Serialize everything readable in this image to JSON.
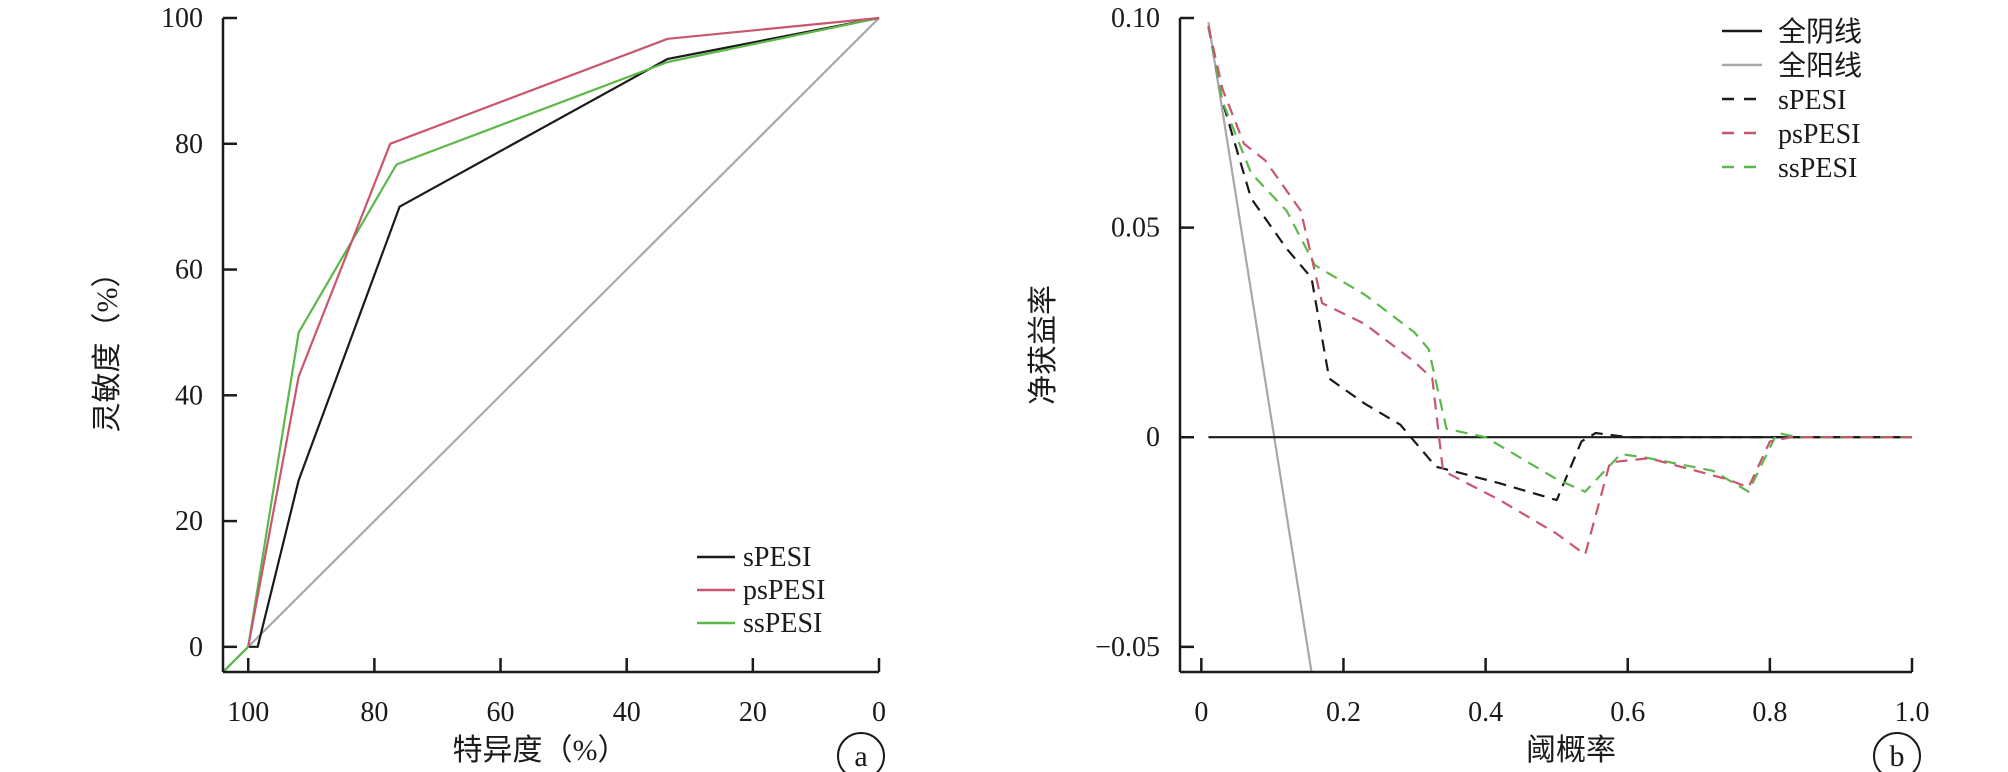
{
  "chart_data": [
    {
      "type": "line",
      "panel_label": "a",
      "xlabel": "特异度（%）",
      "ylabel": "灵敏度（%）",
      "xlim": [
        104,
        0
      ],
      "ylim": [
        -4,
        100
      ],
      "x_ticks": [
        100,
        80,
        60,
        40,
        20,
        0
      ],
      "y_ticks": [
        0,
        20,
        40,
        60,
        80,
        100
      ],
      "legend_position": "bottom-right",
      "series": [
        {
          "name": "sPESI",
          "color": "#1a1a1a",
          "dash": "solid",
          "in_legend": true,
          "points": [
            [
              100,
              0
            ],
            [
              98.5,
              0
            ],
            [
              92,
              26.5
            ],
            [
              76,
              70
            ],
            [
              33.5,
              93.5
            ],
            [
              0,
              100
            ]
          ]
        },
        {
          "name": "psPESI",
          "color": "#c8566e",
          "dash": "solid",
          "in_legend": true,
          "points": [
            [
              100,
              0
            ],
            [
              92,
              43
            ],
            [
              77.5,
              80
            ],
            [
              33.5,
              96.7
            ],
            [
              0,
              100
            ]
          ]
        },
        {
          "name": "ssPESI",
          "color": "#5cb84a",
          "dash": "solid",
          "in_legend": true,
          "points": [
            [
              104,
              -4
            ],
            [
              100,
              0
            ],
            [
              92,
              50
            ],
            [
              76.5,
              76.7
            ],
            [
              33.5,
              93
            ],
            [
              0,
              100
            ]
          ]
        },
        {
          "name": "",
          "color": "#a8a8a8",
          "dash": "solid",
          "in_legend": false,
          "points": [
            [
              104,
              -4
            ],
            [
              0,
              100
            ]
          ]
        }
      ]
    },
    {
      "type": "line",
      "panel_label": "b",
      "xlabel": "阈概率",
      "ylabel": "净获益率",
      "xlim": [
        -0.03,
        1.0
      ],
      "ylim": [
        -0.056,
        0.1
      ],
      "x_ticks": [
        0,
        0.2,
        0.4,
        0.6,
        0.8,
        1.0
      ],
      "x_tick_labels": [
        "0",
        "0.2",
        "0.4",
        "0.6",
        "0.8",
        "1.0"
      ],
      "y_ticks": [
        0.1,
        0.05,
        0,
        -0.05
      ],
      "y_tick_labels": [
        "0.10",
        "0.05",
        "0",
        "−0.05"
      ],
      "legend_position": "top-right",
      "series": [
        {
          "name": "全阴线",
          "color": "#1a1a1a",
          "dash": "solid",
          "points": [
            [
              0.01,
              0
            ],
            [
              1.0,
              0
            ]
          ]
        },
        {
          "name": "全阳线",
          "color": "#a8a8a8",
          "dash": "solid",
          "points": [
            [
              0.01,
              0.099
            ],
            [
              0.155,
              -0.056
            ]
          ]
        },
        {
          "name": "sPESI",
          "color": "#1a1a1a",
          "dash": "dashed",
          "points": [
            [
              0.01,
              0.098
            ],
            [
              0.03,
              0.08
            ],
            [
              0.07,
              0.057
            ],
            [
              0.12,
              0.045
            ],
            [
              0.155,
              0.038
            ],
            [
              0.18,
              0.014
            ],
            [
              0.23,
              0.008
            ],
            [
              0.28,
              0.003
            ],
            [
              0.33,
              -0.007
            ],
            [
              0.42,
              -0.011
            ],
            [
              0.5,
              -0.015
            ],
            [
              0.535,
              -0.001
            ],
            [
              0.555,
              0.001
            ],
            [
              0.6,
              0
            ],
            [
              1.0,
              0
            ]
          ]
        },
        {
          "name": "psPESI",
          "color": "#c8566e",
          "dash": "dashed",
          "points": [
            [
              0.01,
              0.098
            ],
            [
              0.03,
              0.083
            ],
            [
              0.06,
              0.07
            ],
            [
              0.09,
              0.066
            ],
            [
              0.14,
              0.054
            ],
            [
              0.17,
              0.032
            ],
            [
              0.23,
              0.027
            ],
            [
              0.3,
              0.018
            ],
            [
              0.325,
              0.014
            ],
            [
              0.34,
              -0.008
            ],
            [
              0.42,
              -0.015
            ],
            [
              0.5,
              -0.023
            ],
            [
              0.54,
              -0.028
            ],
            [
              0.575,
              -0.006
            ],
            [
              0.63,
              -0.005
            ],
            [
              0.74,
              -0.01
            ],
            [
              0.77,
              -0.012
            ],
            [
              0.8,
              -0.001
            ],
            [
              0.83,
              0
            ],
            [
              1.0,
              0
            ]
          ]
        },
        {
          "name": "ssPESI",
          "color": "#5cb84a",
          "dash": "dashed",
          "points": [
            [
              0.01,
              0.098
            ],
            [
              0.03,
              0.08
            ],
            [
              0.07,
              0.063
            ],
            [
              0.12,
              0.054
            ],
            [
              0.16,
              0.041
            ],
            [
              0.23,
              0.034
            ],
            [
              0.3,
              0.025
            ],
            [
              0.32,
              0.021
            ],
            [
              0.345,
              0.002
            ],
            [
              0.4,
              0
            ],
            [
              0.46,
              -0.006
            ],
            [
              0.5,
              -0.01
            ],
            [
              0.54,
              -0.013
            ],
            [
              0.59,
              -0.004
            ],
            [
              0.63,
              -0.005
            ],
            [
              0.72,
              -0.008
            ],
            [
              0.77,
              -0.013
            ],
            [
              0.81,
              0.001
            ],
            [
              0.84,
              0
            ],
            [
              1.0,
              0
            ]
          ]
        }
      ]
    }
  ]
}
